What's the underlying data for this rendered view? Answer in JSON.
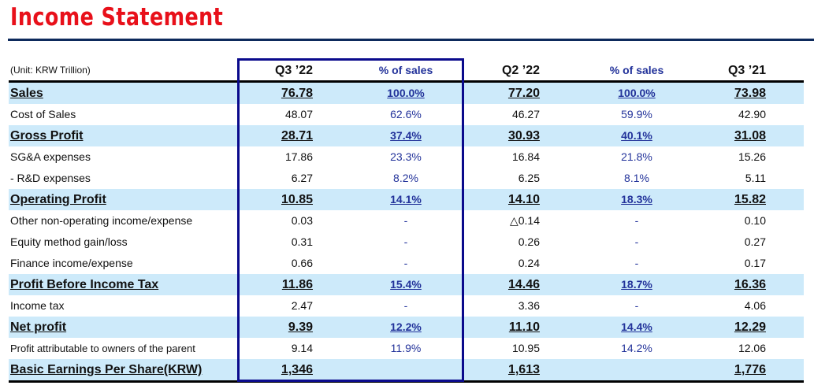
{
  "title": "Income Statement",
  "colors": {
    "title": "#e8101a",
    "rule": "#0d2a5c",
    "highlight_box": "#0a0a8c",
    "bold_row_bg": "#cdeafa",
    "percent_text": "#22329a"
  },
  "header": {
    "unit": "(Unit: KRW Trillion)",
    "c1": "Q3 ’22",
    "p1": "% of sales",
    "c2": "Q2 ’22",
    "p2": "% of sales",
    "c3": "Q3 ’21"
  },
  "rows": [
    {
      "label": "Sales",
      "v1": "76.78",
      "p1": "100.0%",
      "v2": "77.20",
      "p2": "100.0%",
      "v3": "73.98",
      "bold": true
    },
    {
      "label": "Cost of Sales",
      "v1": "48.07",
      "p1": "62.6%",
      "v2": "46.27",
      "p2": "59.9%",
      "v3": "42.90"
    },
    {
      "label": "Gross Profit",
      "v1": "28.71",
      "p1": "37.4%",
      "v2": "30.93",
      "p2": "40.1%",
      "v3": "31.08",
      "bold": true
    },
    {
      "label": "SG&A expenses",
      "v1": "17.86",
      "p1": "23.3%",
      "v2": "16.84",
      "p2": "21.8%",
      "v3": "15.26"
    },
    {
      "label": " - R&D expenses",
      "v1": "6.27",
      "p1": "8.2%",
      "v2": "6.25",
      "p2": "8.1%",
      "v3": "5.11"
    },
    {
      "label": "Operating Profit",
      "v1": "10.85",
      "p1": "14.1%",
      "v2": "14.10",
      "p2": "18.3%",
      "v3": "15.82",
      "bold": true
    },
    {
      "label": "Other non-operating income/expense",
      "v1": "0.03",
      "p1": "-",
      "v2": "△0.14",
      "p2": "-",
      "v3": "0.10"
    },
    {
      "label": "Equity method gain/loss",
      "v1": "0.31",
      "p1": "-",
      "v2": "0.26",
      "p2": "-",
      "v3": "0.27"
    },
    {
      "label": "Finance income/expense",
      "v1": "0.66",
      "p1": "-",
      "v2": "0.24",
      "p2": "-",
      "v3": "0.17"
    },
    {
      "label": "Profit Before Income Tax",
      "v1": "11.86",
      "p1": "15.4%",
      "v2": "14.46",
      "p2": "18.7%",
      "v3": "16.36",
      "bold": true
    },
    {
      "label": "Income tax",
      "v1": "2.47",
      "p1": "-",
      "v2": "3.36",
      "p2": "-",
      "v3": "4.06"
    },
    {
      "label": "Net profit",
      "v1": "9.39",
      "p1": "12.2%",
      "v2": "11.10",
      "p2": "14.4%",
      "v3": "12.29",
      "bold": true
    },
    {
      "label": "Profit attributable to owners of the parent",
      "v1": "9.14",
      "p1": "11.9%",
      "v2": "10.95",
      "p2": "14.2%",
      "v3": "12.06",
      "small": true
    },
    {
      "label": "Basic Earnings Per Share(KRW)",
      "v1": "1,346",
      "p1": "",
      "v2": "1,613",
      "p2": "",
      "v3": "1,776",
      "bold": true
    }
  ]
}
